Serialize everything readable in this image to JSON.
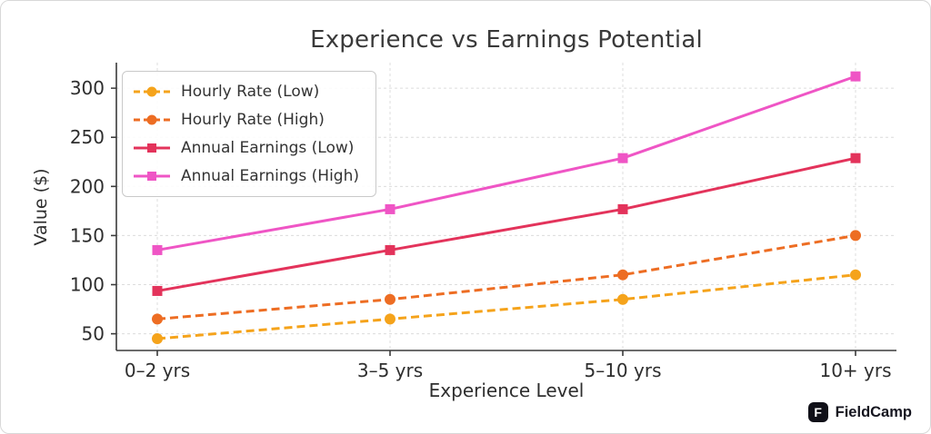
{
  "chart_data": {
    "type": "line",
    "title": "Experience vs Earnings Potential",
    "xlabel": "Experience Level",
    "ylabel": "Value ($)",
    "categories": [
      "0–2 yrs",
      "3–5 yrs",
      "5–10 yrs",
      "10+ yrs"
    ],
    "yticks": [
      50,
      100,
      150,
      200,
      250,
      300
    ],
    "ylim": [
      33,
      326
    ],
    "grid": true,
    "grid_style": "dashed",
    "legend_position": "upper left",
    "series": [
      {
        "name": "Hourly Rate (Low)",
        "values": [
          45,
          65,
          85,
          110
        ],
        "color": "#F5A31B",
        "dash": "dashed",
        "marker": "circle"
      },
      {
        "name": "Hourly Rate (High)",
        "values": [
          65,
          85,
          110,
          150
        ],
        "color": "#ED6D23",
        "dash": "dashed",
        "marker": "circle"
      },
      {
        "name": "Annual Earnings (Low)",
        "values": [
          93.6,
          135.2,
          176.8,
          228.8
        ],
        "color": "#E3335B",
        "dash": "solid",
        "marker": "square"
      },
      {
        "name": "Annual Earnings (High)",
        "values": [
          135.2,
          176.8,
          228.8,
          312
        ],
        "color": "#EF55C5",
        "dash": "solid",
        "marker": "square"
      }
    ],
    "colors": {
      "grid": "#dcdcdc",
      "spine": "#3a3a3a",
      "tick_label": "#2e2e2e"
    }
  },
  "footer": {
    "brand": "FieldCamp",
    "brand_glyph": "F"
  }
}
